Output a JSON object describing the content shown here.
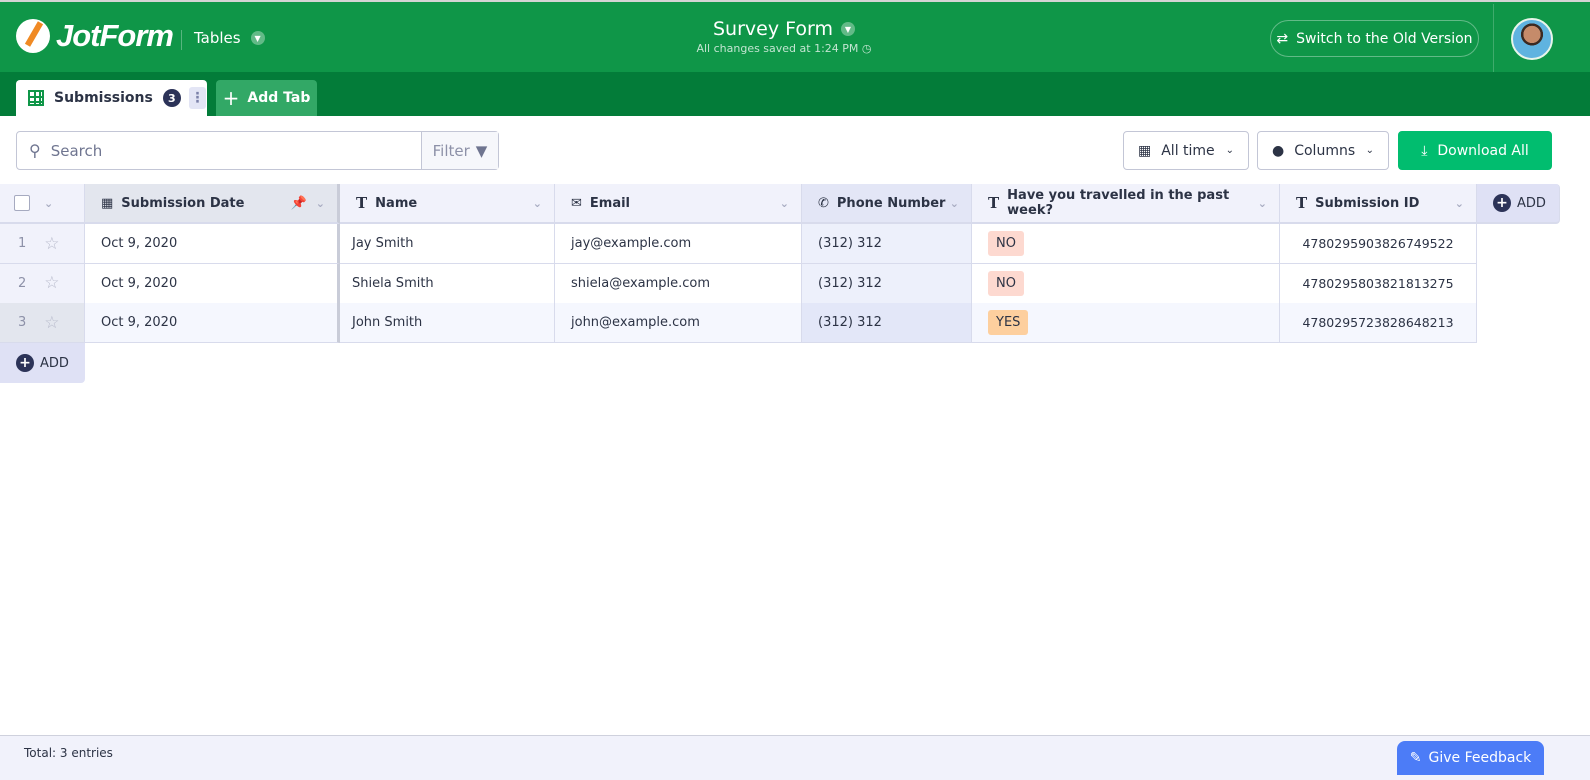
{
  "header": {
    "logo": "JotForm",
    "product": "Tables",
    "title": "Survey Form",
    "saved_status": "All changes saved at 1:24 PM",
    "switch_label": "Switch to the Old Version"
  },
  "tabs": {
    "submissions_label": "Submissions",
    "submissions_count": "3",
    "add_tab_label": "Add Tab"
  },
  "toolbar": {
    "search_placeholder": "Search",
    "filter_label": "Filter",
    "date_range": "All time",
    "columns_label": "Columns",
    "download_label": "Download All"
  },
  "table": {
    "columns": [
      {
        "label": "Submission Date",
        "icon": "calendar-icon"
      },
      {
        "label": "Name",
        "icon": "text-icon"
      },
      {
        "label": "Email",
        "icon": "envelope-icon"
      },
      {
        "label": "Phone Number",
        "icon": "phone-icon"
      },
      {
        "label": "Have you travelled in the past week?",
        "icon": "text-icon"
      },
      {
        "label": "Submission ID",
        "icon": "text-icon"
      }
    ],
    "add_column_label": "ADD",
    "add_row_label": "ADD",
    "rows": [
      {
        "num": "1",
        "date": "Oct 9, 2020",
        "name": "Jay Smith",
        "email": "jay@example.com",
        "phone": "(312) 312",
        "travelled": "NO",
        "id": "4780295903826749522"
      },
      {
        "num": "2",
        "date": "Oct 9, 2020",
        "name": "Shiela Smith",
        "email": "shiela@example.com",
        "phone": "(312) 312",
        "travelled": "NO",
        "id": "4780295803821813275"
      },
      {
        "num": "3",
        "date": "Oct 9, 2020",
        "name": "John Smith",
        "email": "john@example.com",
        "phone": "(312) 312",
        "travelled": "YES",
        "id": "4780295723828648213"
      }
    ]
  },
  "colors": {
    "brand": "#0f9648",
    "tab_bar": "#037c39",
    "download": "#01bd6f",
    "tag_no": "#fdd9d0",
    "tag_yes": "#fdcf9e",
    "feedback": "#4c7cf7"
  },
  "footer": {
    "total": "Total: 3 entries",
    "feedback_label": "Give Feedback"
  }
}
